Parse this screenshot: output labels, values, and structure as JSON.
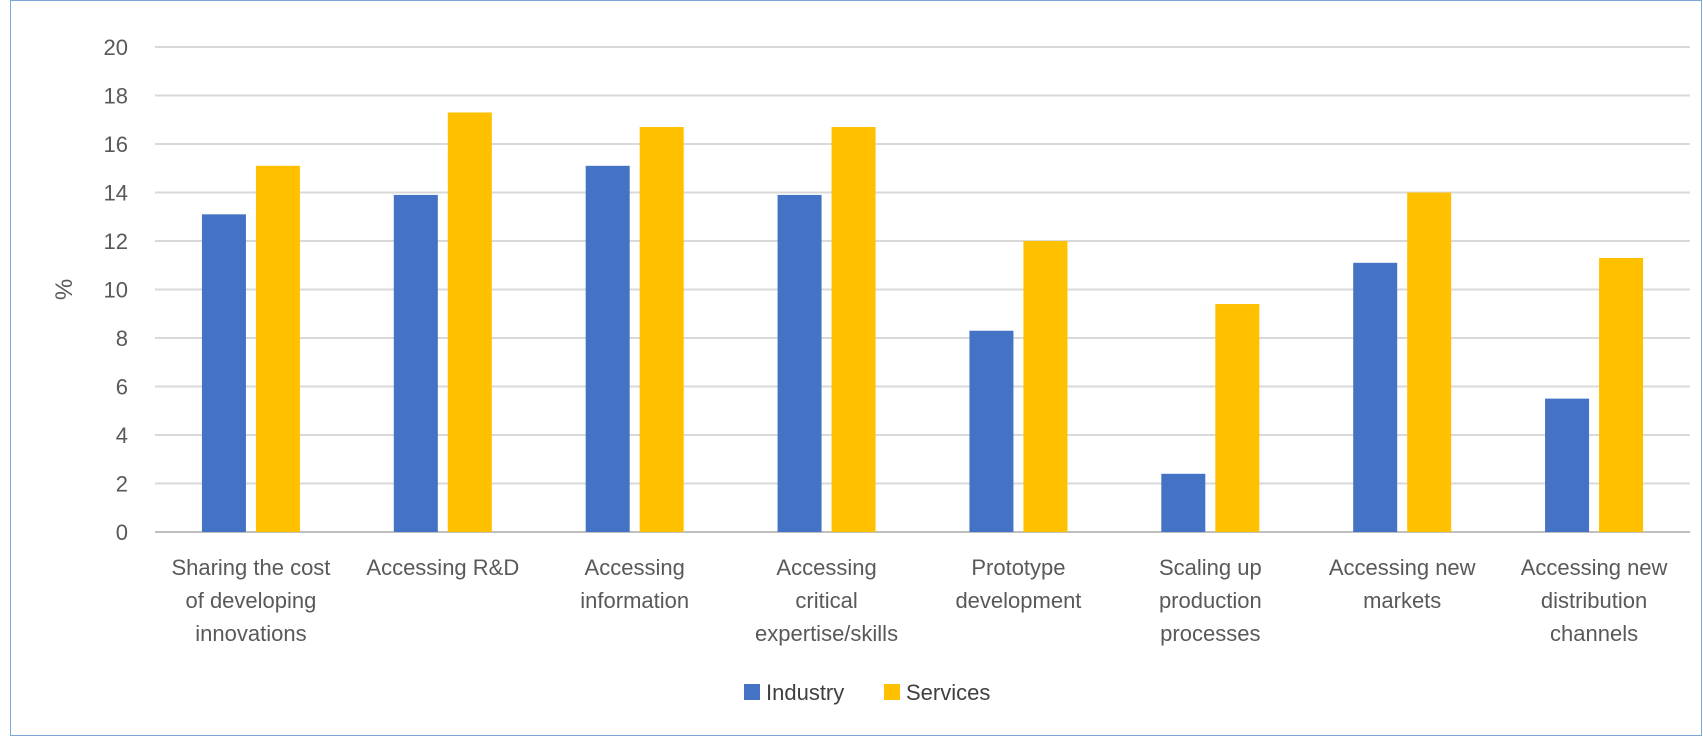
{
  "chart_data": {
    "type": "bar",
    "ylabel": "%",
    "xlabel": "",
    "title": "",
    "ylim": [
      0,
      20
    ],
    "ytick_step": 2,
    "grid": true,
    "legend_position": "bottom",
    "categories": [
      [
        "Sharing the cost",
        "of developing",
        "innovations"
      ],
      [
        "Accessing R&D"
      ],
      [
        "Accessing",
        "information"
      ],
      [
        "Accessing",
        "critical",
        "expertise/skills"
      ],
      [
        "Prototype",
        "development"
      ],
      [
        "Scaling up",
        "production",
        "processes"
      ],
      [
        "Accessing new",
        "markets"
      ],
      [
        "Accessing new",
        "distribution",
        "channels"
      ]
    ],
    "series": [
      {
        "name": "Industry",
        "color": "#4472C4",
        "values": [
          13.1,
          13.9,
          15.1,
          13.9,
          8.3,
          2.4,
          11.1,
          5.5
        ]
      },
      {
        "name": "Services",
        "color": "#FFC000",
        "values": [
          15.1,
          17.3,
          16.7,
          16.7,
          12.0,
          9.4,
          14.0,
          11.3
        ]
      }
    ]
  }
}
